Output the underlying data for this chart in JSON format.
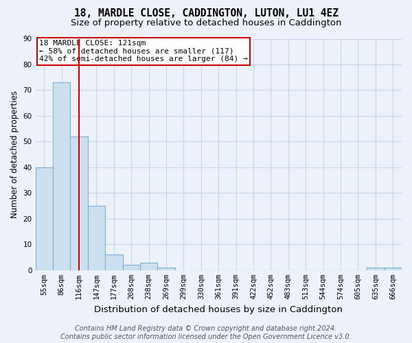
{
  "title": "18, MARDLE CLOSE, CADDINGTON, LUTON, LU1 4EZ",
  "subtitle": "Size of property relative to detached houses in Caddington",
  "xlabel": "Distribution of detached houses by size in Caddington",
  "ylabel": "Number of detached properties",
  "categories": [
    "55sqm",
    "86sqm",
    "116sqm",
    "147sqm",
    "177sqm",
    "208sqm",
    "238sqm",
    "269sqm",
    "299sqm",
    "330sqm",
    "361sqm",
    "391sqm",
    "422sqm",
    "452sqm",
    "483sqm",
    "513sqm",
    "544sqm",
    "574sqm",
    "605sqm",
    "635sqm",
    "666sqm"
  ],
  "values": [
    40,
    73,
    52,
    25,
    6,
    2,
    3,
    1,
    0,
    0,
    0,
    0,
    0,
    0,
    0,
    0,
    0,
    0,
    0,
    1,
    1
  ],
  "bar_color": "#cce0f0",
  "bar_edgecolor": "#7ab0d4",
  "grid_color": "#c8d4e8",
  "vline_x_index": 2,
  "vline_color": "#cc0000",
  "annotation_text": "18 MARDLE CLOSE: 121sqm\n← 58% of detached houses are smaller (117)\n42% of semi-detached houses are larger (84) →",
  "annotation_box_color": "#ffffff",
  "annotation_box_edgecolor": "#cc0000",
  "ylim": [
    0,
    90
  ],
  "yticks": [
    0,
    10,
    20,
    30,
    40,
    50,
    60,
    70,
    80,
    90
  ],
  "footer_text": "Contains HM Land Registry data © Crown copyright and database right 2024.\nContains public sector information licensed under the Open Government Licence v3.0.",
  "bg_color": "#edf1f9",
  "plot_bg_color": "#edf1f9",
  "title_fontsize": 10.5,
  "subtitle_fontsize": 9.5,
  "xlabel_fontsize": 9.5,
  "ylabel_fontsize": 8.5,
  "tick_fontsize": 7.5,
  "annotation_fontsize": 8,
  "footer_fontsize": 7
}
